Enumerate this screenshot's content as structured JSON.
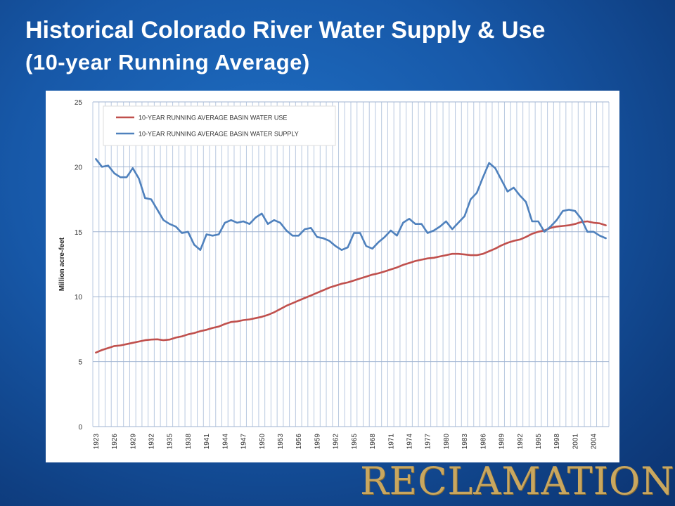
{
  "slide": {
    "title_line1": "Historical Colorado River Water Supply & Use",
    "title_line2": "(10-year Running Average)",
    "logo_text": "RECLAMATION"
  },
  "colors": {
    "use_series": "#c0504d",
    "supply_series": "#4f81bd",
    "gridline": "#b9c9e0",
    "axis_text": "#333333"
  },
  "chart_data": {
    "type": "line",
    "title": "",
    "xlabel": "",
    "ylabel": "Million acre-feet",
    "ylim": [
      0,
      25
    ],
    "yticks": [
      0,
      5,
      10,
      15,
      20,
      25
    ],
    "xticks": [
      1923,
      1926,
      1929,
      1932,
      1935,
      1938,
      1941,
      1944,
      1947,
      1950,
      1953,
      1956,
      1959,
      1962,
      1965,
      1968,
      1971,
      1974,
      1977,
      1980,
      1983,
      1986,
      1989,
      1992,
      1995,
      1998,
      2001,
      2004
    ],
    "grid": "vertical lines every year, horizontal lines every 5",
    "legend_placement": "top-left",
    "x": [
      1923,
      1924,
      1925,
      1926,
      1927,
      1928,
      1929,
      1930,
      1931,
      1932,
      1933,
      1934,
      1935,
      1936,
      1937,
      1938,
      1939,
      1940,
      1941,
      1942,
      1943,
      1944,
      1945,
      1946,
      1947,
      1948,
      1949,
      1950,
      1951,
      1952,
      1953,
      1954,
      1955,
      1956,
      1957,
      1958,
      1959,
      1960,
      1961,
      1962,
      1963,
      1964,
      1965,
      1966,
      1967,
      1968,
      1969,
      1970,
      1971,
      1972,
      1973,
      1974,
      1975,
      1976,
      1977,
      1978,
      1979,
      1980,
      1981,
      1982,
      1983,
      1984,
      1985,
      1986,
      1987,
      1988,
      1989,
      1990,
      1991,
      1992,
      1993,
      1994,
      1995,
      1996,
      1997,
      1998,
      1999,
      2000,
      2001,
      2002,
      2003,
      2004,
      2005,
      2006
    ],
    "series": [
      {
        "name": "10-YEAR RUNNING AVERAGE BASIN WATER USE",
        "values": [
          5.7,
          5.9,
          6.05,
          6.2,
          6.25,
          6.35,
          6.45,
          6.55,
          6.65,
          6.7,
          6.72,
          6.65,
          6.7,
          6.85,
          6.95,
          7.1,
          7.2,
          7.35,
          7.45,
          7.6,
          7.7,
          7.9,
          8.05,
          8.1,
          8.2,
          8.25,
          8.35,
          8.45,
          8.6,
          8.8,
          9.05,
          9.3,
          9.5,
          9.7,
          9.9,
          10.1,
          10.3,
          10.5,
          10.7,
          10.85,
          11.0,
          11.1,
          11.25,
          11.4,
          11.55,
          11.7,
          11.8,
          11.95,
          12.1,
          12.25,
          12.45,
          12.6,
          12.75,
          12.85,
          12.95,
          13.0,
          13.1,
          13.2,
          13.3,
          13.3,
          13.25,
          13.2,
          13.2,
          13.3,
          13.5,
          13.7,
          13.95,
          14.15,
          14.3,
          14.4,
          14.6,
          14.85,
          15.0,
          15.1,
          15.3,
          15.4,
          15.45,
          15.5,
          15.6,
          15.75,
          15.8,
          15.7,
          15.65,
          15.5
        ]
      },
      {
        "name": "10-YEAR RUNNING AVERAGE BASIN WATER SUPPLY",
        "values": [
          20.6,
          20.0,
          20.1,
          19.5,
          19.2,
          19.2,
          19.9,
          19.1,
          17.6,
          17.5,
          16.7,
          15.9,
          15.6,
          15.4,
          14.9,
          15.0,
          14.0,
          13.6,
          14.8,
          14.7,
          14.8,
          15.7,
          15.9,
          15.7,
          15.8,
          15.6,
          16.1,
          16.4,
          15.6,
          15.9,
          15.7,
          15.1,
          14.7,
          14.7,
          15.2,
          15.3,
          14.6,
          14.5,
          14.3,
          13.9,
          13.6,
          13.8,
          14.9,
          14.9,
          13.9,
          13.7,
          14.2,
          14.6,
          15.1,
          14.7,
          15.7,
          16.0,
          15.6,
          15.6,
          14.9,
          15.1,
          15.4,
          15.8,
          15.2,
          15.7,
          16.2,
          17.5,
          18.0,
          19.2,
          20.3,
          19.9,
          19.0,
          18.1,
          18.4,
          17.8,
          17.3,
          15.8,
          15.8,
          15.0,
          15.4,
          15.9,
          16.6,
          16.7,
          16.6,
          16.0,
          15.0,
          15.0,
          14.7,
          14.5
        ]
      }
    ]
  }
}
